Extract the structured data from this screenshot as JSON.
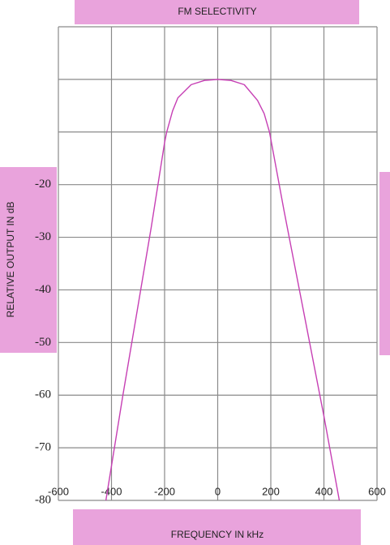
{
  "chart_data": {
    "type": "line",
    "title": "FM SELECTIVITY",
    "x_label": "FREQUENCY IN kHz",
    "y_label": "RELATIVE OUTPUT IN dB",
    "x": [
      -421,
      -357,
      -300,
      -250,
      -200,
      -192,
      -170,
      -150,
      -100,
      -50,
      0,
      50,
      100,
      150,
      175,
      195,
      250,
      300,
      350,
      400,
      458
    ],
    "series": [
      {
        "name": "FM selectivity",
        "color": "#c63fb4",
        "values": [
          -80,
          -60,
          -43,
          -28,
          -12,
          -10,
          -6,
          -3.5,
          -1,
          -0.2,
          0,
          -0.2,
          -1,
          -4,
          -6.5,
          -10,
          -25,
          -38,
          -51,
          -64,
          -80
        ]
      }
    ],
    "xlim": [
      -600,
      600
    ],
    "xticks": [
      -600,
      -400,
      -200,
      0,
      200,
      400,
      600
    ],
    "ylim": [
      -80,
      10
    ],
    "yticks": [
      -20,
      -30,
      -40,
      -50,
      -60,
      -70,
      -80
    ],
    "ygrid": [
      10,
      0,
      -10,
      -20,
      -30,
      -40,
      -50,
      -60,
      -70,
      -80
    ],
    "grid": true
  }
}
